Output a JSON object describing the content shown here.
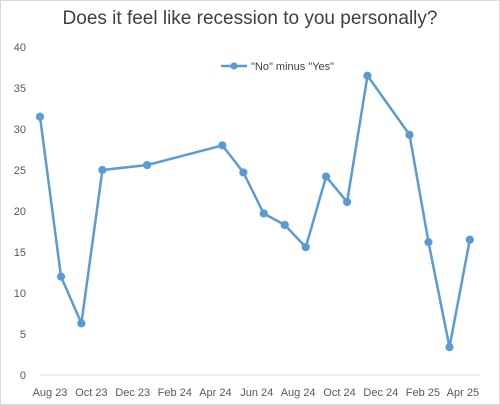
{
  "chart_data": {
    "type": "line",
    "title": "Does it feel like recession to you personally?",
    "xlabel": "",
    "ylabel": "",
    "ylim": [
      0,
      40
    ],
    "y_ticks": [
      0,
      5,
      10,
      15,
      20,
      25,
      30,
      35,
      40
    ],
    "x_tick_labels": [
      "Aug 23",
      "Oct 23",
      "Dec 23",
      "Feb 24",
      "Apr 24",
      "Jun 24",
      "Aug 24",
      "Oct 24",
      "Dec 24",
      "Feb 25",
      "Apr 25"
    ],
    "grid": false,
    "legend_position": "top-center",
    "color": "#5B9BD5",
    "series": [
      {
        "name": "\"No\" minus \"Yes\"",
        "x": [
          "2023-08-15",
          "2023-09-15",
          "2023-10-15",
          "2023-11-15",
          "2024-01-20",
          "2024-05-10",
          "2024-06-10",
          "2024-07-10",
          "2024-08-10",
          "2024-09-10",
          "2024-10-10",
          "2024-11-10",
          "2024-12-10",
          "2025-02-10",
          "2025-03-10",
          "2025-04-10",
          "2025-05-10"
        ],
        "values": [
          31.5,
          12,
          6.3,
          25,
          25.6,
          28,
          24.7,
          19.7,
          18.3,
          15.6,
          24.2,
          21.1,
          36.5,
          29.3,
          16.2,
          3.4,
          16.5
        ]
      }
    ]
  }
}
